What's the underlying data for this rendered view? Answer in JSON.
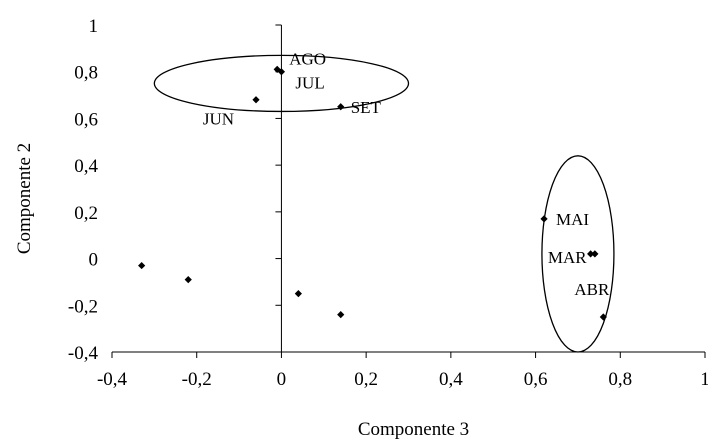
{
  "chart_data": {
    "type": "scatter",
    "title": "",
    "xlabel": "Componente 3",
    "ylabel": "Componente 2",
    "xlim": [
      -0.4,
      1
    ],
    "ylim": [
      -0.4,
      1
    ],
    "xticks": [
      "-0,4",
      "-0,2",
      "0",
      "0,2",
      "0,4",
      "0,6",
      "0,8",
      "1"
    ],
    "yticks": [
      "-0,4",
      "-0,2",
      "0",
      "0,2",
      "0,4",
      "0,6",
      "0,8",
      "1"
    ],
    "xtick_values": [
      -0.4,
      -0.2,
      0,
      0.2,
      0.4,
      0.6,
      0.8,
      1
    ],
    "ytick_values": [
      -0.4,
      -0.2,
      0,
      0.2,
      0.4,
      0.6,
      0.8,
      1
    ],
    "grid": false,
    "marker_color": "#000000",
    "points": [
      {
        "label": "AGO",
        "x": -0.01,
        "y": 0.81
      },
      {
        "label": "JUL",
        "x": 0.0,
        "y": 0.8
      },
      {
        "label": "JUN",
        "x": -0.06,
        "y": 0.68
      },
      {
        "label": "SET",
        "x": 0.14,
        "y": 0.65
      },
      {
        "label": "MAI",
        "x": 0.62,
        "y": 0.17
      },
      {
        "label": "MAR",
        "x": 0.73,
        "y": 0.02
      },
      {
        "label": "",
        "x": 0.74,
        "y": 0.02
      },
      {
        "label": "ABR",
        "x": 0.76,
        "y": -0.25
      },
      {
        "label": "",
        "x": -0.33,
        "y": -0.03
      },
      {
        "label": "",
        "x": -0.22,
        "y": -0.09
      },
      {
        "label": "",
        "x": 0.04,
        "y": -0.15
      },
      {
        "label": "",
        "x": 0.14,
        "y": -0.24
      }
    ],
    "ellipses": [
      {
        "cx": 0.0,
        "cy": 0.75,
        "rx": 0.3,
        "ry": 0.12
      },
      {
        "cx": 0.7,
        "cy": 0.02,
        "rx": 0.085,
        "ry": 0.42
      }
    ]
  }
}
